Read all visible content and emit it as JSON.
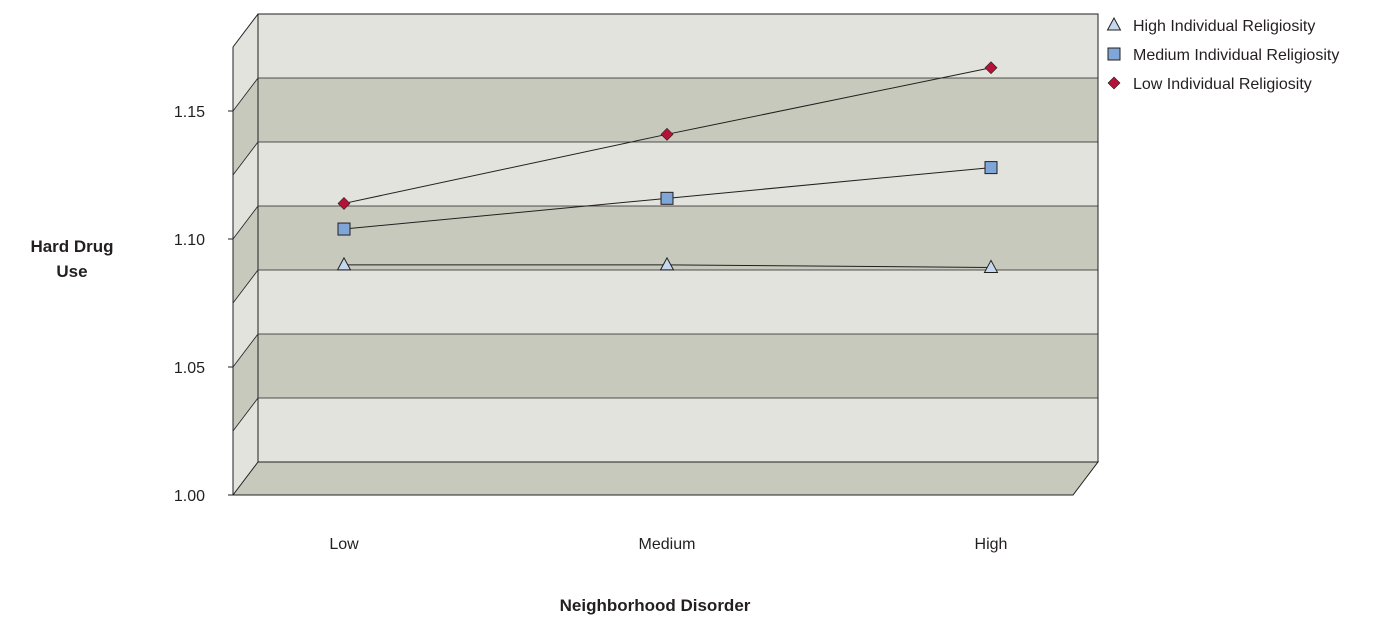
{
  "chart_data": {
    "type": "line",
    "title": "",
    "xlabel": "Neighborhood Disorder",
    "ylabel": [
      "Hard Drug",
      "Use"
    ],
    "categories": [
      "Low",
      "Medium",
      "High"
    ],
    "ylim": [
      1.0,
      1.15
    ],
    "yticks": [
      "1.00",
      "1.05",
      "1.10",
      "1.15"
    ],
    "three_d": true,
    "legend_position": "top-right",
    "colors": {
      "band_light": "#e2e3dc",
      "band_dark": "#c8c9bd",
      "line": "#231f20"
    },
    "series": [
      {
        "name": "High Individual Religiosity",
        "marker": "triangle",
        "color": "#c5d7ee",
        "values": [
          1.077,
          1.077,
          1.076
        ]
      },
      {
        "name": "Medium Individual Religiosity",
        "marker": "square",
        "color": "#7fa6d6",
        "values": [
          1.091,
          1.103,
          1.115
        ]
      },
      {
        "name": "Low Individual Religiosity",
        "marker": "diamond",
        "color": "#b5123a",
        "values": [
          1.101,
          1.128,
          1.154
        ]
      }
    ]
  }
}
